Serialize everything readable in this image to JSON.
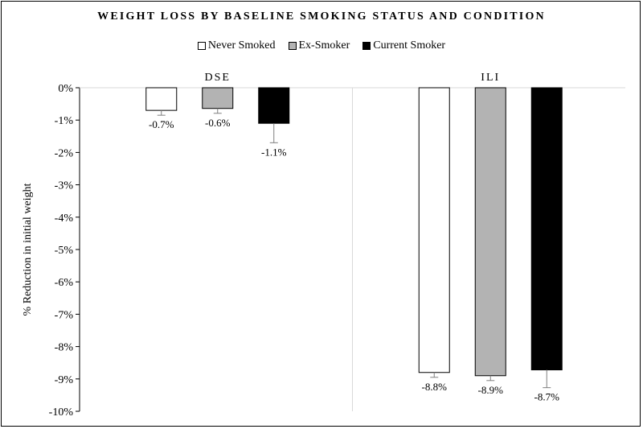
{
  "chart_data": {
    "type": "bar",
    "title": "WEIGHT LOSS BY BASELINE SMOKING STATUS AND CONDITION",
    "xlabel": "",
    "ylabel": "% Reduction in initial weight",
    "ylim": [
      -10,
      0
    ],
    "yticks": [
      "0%",
      "-1%",
      "-2%",
      "-3%",
      "-4%",
      "-5%",
      "-6%",
      "-7%",
      "-8%",
      "-9%",
      "-10%"
    ],
    "ytick_values": [
      0,
      -1,
      -2,
      -3,
      -4,
      -5,
      -6,
      -7,
      -8,
      -9,
      -10
    ],
    "categories": [
      "DSE",
      "ILI"
    ],
    "legend_position": "top",
    "grid": false,
    "series": [
      {
        "name": "Never Smoked",
        "color": "#ffffff",
        "values": [
          -0.7,
          -8.8
        ],
        "error": [
          0.15,
          0.15
        ],
        "labels": [
          "-0.7%",
          "-8.8%"
        ]
      },
      {
        "name": "Ex-Smoker",
        "color": "#b3b3b3",
        "values": [
          -0.64,
          -8.9
        ],
        "error": [
          0.15,
          0.15
        ],
        "labels": [
          "-0.6%",
          "-8.9%"
        ]
      },
      {
        "name": "Current Smoker",
        "color": "#000000",
        "values": [
          -1.1,
          -8.72
        ],
        "error": [
          0.6,
          0.55
        ],
        "labels": [
          "-1.1%",
          "-8.7%"
        ]
      }
    ]
  }
}
